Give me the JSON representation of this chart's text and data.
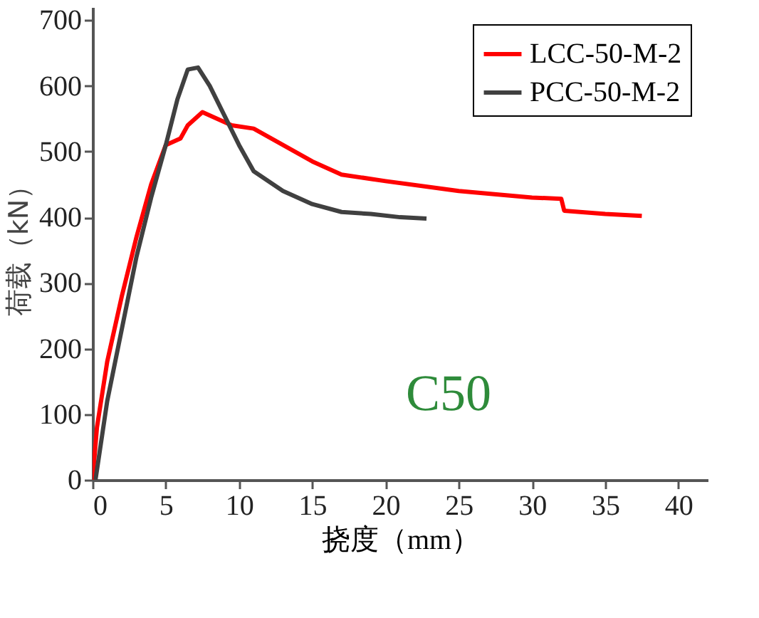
{
  "chart_data": {
    "type": "line",
    "xlabel": "挠度（mm）",
    "ylabel": "荷载（kN）",
    "xlim": [
      0,
      42
    ],
    "ylim": [
      0,
      720
    ],
    "xticks": [
      0,
      5,
      10,
      15,
      20,
      25,
      30,
      35,
      40
    ],
    "yticks": [
      0,
      100,
      200,
      300,
      400,
      500,
      600,
      700
    ],
    "grid": false,
    "legend": "top right",
    "marker": "none",
    "line_style": "solid",
    "annotations": [
      "C50"
    ],
    "series": [
      {
        "name": "LCC-50-M-2",
        "color": "#ff0000",
        "x": [
          0,
          0.3,
          1,
          2,
          3,
          4,
          5,
          6,
          6.5,
          7.5,
          8.5,
          9.5,
          11,
          13,
          15,
          17,
          20,
          25,
          30,
          32,
          32.2,
          35,
          37.5
        ],
        "values": [
          0,
          80,
          180,
          280,
          370,
          450,
          510,
          520,
          540,
          560,
          550,
          540,
          535,
          510,
          485,
          465,
          455,
          440,
          430,
          428,
          410,
          405,
          402
        ]
      },
      {
        "name": "PCC-50-M-2",
        "color": "#404040",
        "x": [
          0.2,
          1,
          2,
          3,
          4,
          5,
          5.8,
          6.5,
          7.2,
          8,
          9,
          10,
          11,
          13,
          15,
          17,
          19,
          21,
          22.8
        ],
        "values": [
          0,
          120,
          230,
          340,
          430,
          510,
          580,
          625,
          628,
          600,
          555,
          510,
          470,
          440,
          420,
          408,
          405,
          400,
          398
        ]
      }
    ]
  }
}
